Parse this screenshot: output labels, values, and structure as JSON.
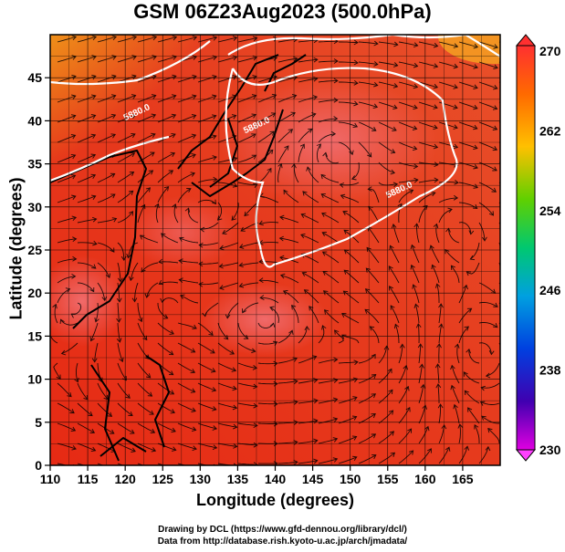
{
  "title": "GSM 06Z23Aug2023 (500.0hPa)",
  "xlabel": "Longitude (degrees)",
  "ylabel": "Latitude  (degrees)",
  "credits": [
    "Drawing by DCL (https://www.gfd-dennou.org/library/dcl/)",
    "Data from http://database.rish.kyoto-u.ac.jp/arch/jmadata/"
  ],
  "map": {
    "lon_range": [
      110,
      170
    ],
    "lat_range": [
      0,
      50
    ],
    "lon_ticks": [
      110,
      115,
      120,
      125,
      130,
      135,
      140,
      145,
      150,
      155,
      160,
      165
    ],
    "lat_ticks": [
      0,
      5,
      10,
      15,
      20,
      25,
      30,
      35,
      40,
      45
    ],
    "grid": true,
    "field": "temperature (K)",
    "contour_labels": [
      {
        "text": "5880.0",
        "lon": 120,
        "lat": 40
      },
      {
        "text": "5880.0",
        "lon": 136,
        "lat": 38.5
      },
      {
        "text": "5880.0",
        "lon": 155,
        "lat": 31
      }
    ]
  },
  "colorbar": {
    "min": 230,
    "max": 270,
    "tick_labels": [
      "270",
      "262",
      "254",
      "246",
      "238",
      "230"
    ],
    "colors": [
      "#ff0000",
      "#ff7f00",
      "#ffd000",
      "#80e000",
      "#00c000",
      "#00c0c0",
      "#0080ff",
      "#0000d0",
      "#8000c0",
      "#ff00ff"
    ]
  }
}
